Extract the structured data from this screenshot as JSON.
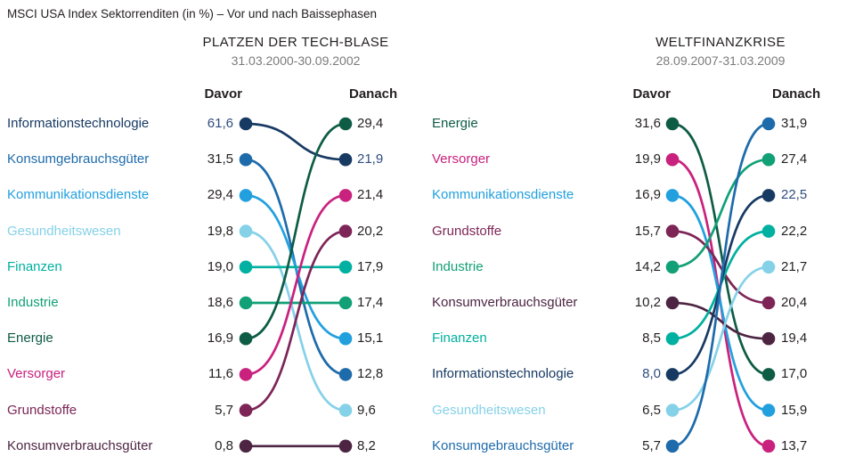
{
  "page_title": "MSCI USA Index Sektorrenditen (in %) – Vor und nach Baissephasen",
  "columns": {
    "before": "Davor",
    "after": "Danach"
  },
  "text_color": "#231f20",
  "period_color": "#7b7b7d",
  "emphasis": {
    "sector": "Informationstechnologie",
    "value_color": "#2e4c7f"
  },
  "sector_colors": {
    "Informationstechnologie": "#173a63",
    "Konsumgebrauchsgüter": "#1e6bab",
    "Kommunikationsdienste": "#22a0de",
    "Gesundheitswesen": "#85d1e8",
    "Finanzen": "#00b0a0",
    "Industrie": "#12a077",
    "Energie": "#0e5c45",
    "Versorger": "#c9217e",
    "Grundstoffe": "#7d2557",
    "Konsumverbrauchsgüter": "#4d2543"
  },
  "chart_data": [
    {
      "type": "line",
      "subtype": "slopegraph",
      "title": "PLATZEN DER TECH-BLASE",
      "period": "31.03.2000-30.09.2002",
      "x": [
        "Davor",
        "Danach"
      ],
      "legend_position": "left-labels",
      "grid": false,
      "series": [
        {
          "name": "Informationstechnologie",
          "values": [
            61.6,
            21.9
          ]
        },
        {
          "name": "Konsumgebrauchsgüter",
          "values": [
            31.5,
            12.8
          ]
        },
        {
          "name": "Kommunikationsdienste",
          "values": [
            29.4,
            15.1
          ]
        },
        {
          "name": "Gesundheitswesen",
          "values": [
            19.8,
            9.6
          ]
        },
        {
          "name": "Finanzen",
          "values": [
            19.0,
            17.9
          ]
        },
        {
          "name": "Industrie",
          "values": [
            18.6,
            17.4
          ]
        },
        {
          "name": "Energie",
          "values": [
            16.9,
            29.4
          ]
        },
        {
          "name": "Versorger",
          "values": [
            11.6,
            21.4
          ]
        },
        {
          "name": "Grundstoffe",
          "values": [
            5.7,
            20.2
          ]
        },
        {
          "name": "Konsumverbrauchsgüter",
          "values": [
            0.8,
            8.2
          ]
        }
      ]
    },
    {
      "type": "line",
      "subtype": "slopegraph",
      "title": "WELTFINANZKRISE",
      "period": "28.09.2007-31.03.2009",
      "x": [
        "Davor",
        "Danach"
      ],
      "legend_position": "left-labels",
      "grid": false,
      "series": [
        {
          "name": "Energie",
          "values": [
            31.6,
            17.0
          ]
        },
        {
          "name": "Versorger",
          "values": [
            19.9,
            13.7
          ]
        },
        {
          "name": "Kommunikationsdienste",
          "values": [
            16.9,
            15.9
          ]
        },
        {
          "name": "Grundstoffe",
          "values": [
            15.7,
            20.4
          ]
        },
        {
          "name": "Industrie",
          "values": [
            14.2,
            27.4
          ]
        },
        {
          "name": "Konsumverbrauchsgüter",
          "values": [
            10.2,
            19.4
          ]
        },
        {
          "name": "Finanzen",
          "values": [
            8.5,
            22.2
          ]
        },
        {
          "name": "Informationstechnologie",
          "values": [
            8.0,
            22.5
          ]
        },
        {
          "name": "Gesundheitswesen",
          "values": [
            6.5,
            21.7
          ]
        },
        {
          "name": "Konsumgebrauchsgüter",
          "values": [
            5.7,
            31.9
          ]
        }
      ]
    }
  ]
}
